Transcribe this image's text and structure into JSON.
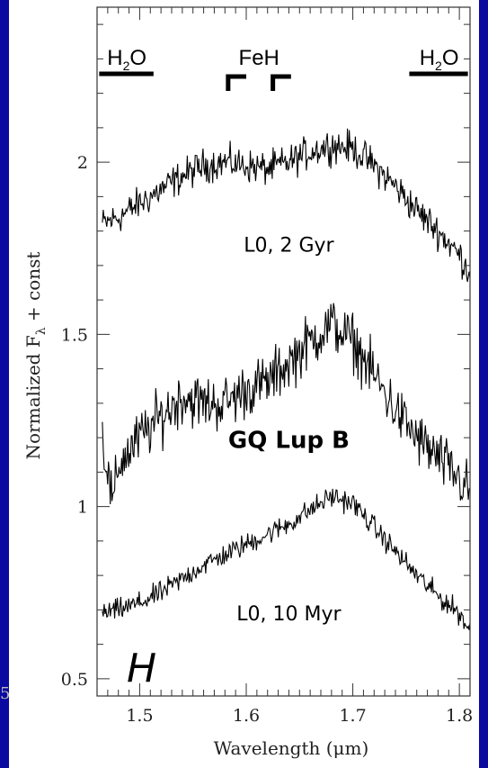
{
  "chart_data": {
    "type": "line",
    "xlabel": "Wavelength (μm)",
    "ylabel": "Normalized F",
    "ylabel_subscript": "λ",
    "ylabel_suffix": " + const",
    "xlim": [
      1.46,
      1.81
    ],
    "ylim": [
      0.45,
      2.45
    ],
    "x_ticks": [
      1.5,
      1.6,
      1.7,
      1.8
    ],
    "x_tick_labels": [
      "1.5",
      "1.6",
      "1.7",
      "1.8"
    ],
    "y_ticks": [
      0.5,
      1,
      1.5,
      2
    ],
    "y_tick_labels": [
      "0.5",
      "1",
      "1.5",
      "2"
    ],
    "grid": false,
    "band_label": "H",
    "series": [
      {
        "name": "L0, 2 Gyr",
        "x": [
          1.465,
          1.48,
          1.5,
          1.52,
          1.54,
          1.56,
          1.58,
          1.6,
          1.62,
          1.64,
          1.66,
          1.68,
          1.7,
          1.72,
          1.74,
          1.76,
          1.78,
          1.8,
          1.81
        ],
        "y": [
          1.82,
          1.84,
          1.88,
          1.92,
          1.96,
          1.99,
          2.0,
          1.99,
          1.98,
          2.0,
          2.03,
          2.05,
          2.04,
          1.99,
          1.93,
          1.86,
          1.8,
          1.73,
          1.68
        ],
        "noise": 0.045
      },
      {
        "name": "GQ Lup B",
        "x": [
          1.465,
          1.475,
          1.48,
          1.5,
          1.52,
          1.54,
          1.56,
          1.58,
          1.6,
          1.62,
          1.64,
          1.66,
          1.68,
          1.7,
          1.72,
          1.74,
          1.76,
          1.78,
          1.8,
          1.81
        ],
        "y": [
          1.2,
          1.0,
          1.12,
          1.2,
          1.26,
          1.32,
          1.3,
          1.3,
          1.34,
          1.36,
          1.42,
          1.48,
          1.53,
          1.48,
          1.38,
          1.28,
          1.2,
          1.14,
          1.08,
          1.04
        ],
        "noise": 0.075
      },
      {
        "name": "L0, 10 Myr",
        "x": [
          1.465,
          1.48,
          1.5,
          1.52,
          1.54,
          1.56,
          1.58,
          1.6,
          1.62,
          1.64,
          1.66,
          1.68,
          1.7,
          1.72,
          1.74,
          1.76,
          1.78,
          1.8,
          1.81
        ],
        "y": [
          0.69,
          0.7,
          0.72,
          0.75,
          0.79,
          0.83,
          0.86,
          0.89,
          0.92,
          0.95,
          0.99,
          1.03,
          1.01,
          0.94,
          0.87,
          0.8,
          0.74,
          0.69,
          0.64
        ],
        "noise": 0.03
      }
    ],
    "annotations": [
      {
        "text": "L0, 2 Gyr",
        "x": 1.64,
        "y": 1.74,
        "style": "small"
      },
      {
        "text": "GQ Lup B",
        "x": 1.64,
        "y": 1.17,
        "style": "big"
      },
      {
        "text": "L0, 10 Myr",
        "x": 1.64,
        "y": 0.67,
        "style": "small"
      }
    ],
    "features": [
      {
        "label": "H",
        "sub": "2",
        "suffix": "O",
        "type": "bar",
        "x_start": 1.462,
        "x_end": 1.513,
        "label_x": 1.488
      },
      {
        "label": "FeH",
        "sub": "",
        "suffix": "",
        "type": "brackets",
        "brackets": [
          [
            1.583,
            1.6
          ],
          [
            1.625,
            1.642
          ]
        ],
        "label_x": 1.612
      },
      {
        "label": "H",
        "sub": "2",
        "suffix": "O",
        "type": "bar",
        "x_start": 1.753,
        "x_end": 1.808,
        "label_x": 1.781
      }
    ],
    "colors": {
      "line": "#000000",
      "frame": "#0a0aa0",
      "axis": "#333333"
    }
  },
  "clipped_text": "5"
}
